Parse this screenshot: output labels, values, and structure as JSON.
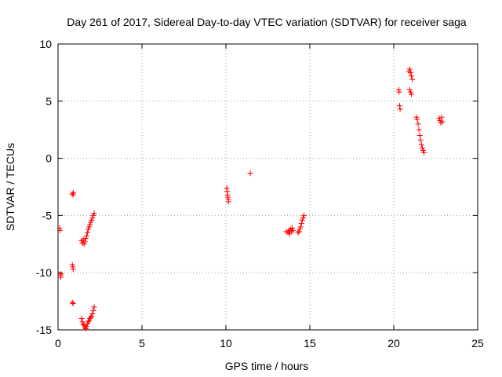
{
  "chart_data": {
    "type": "scatter",
    "title": "Day 261 of 2017, Sidereal Day-to-day VTEC variation (SDTVAR) for receiver saga",
    "xlabel": "GPS time / hours",
    "ylabel": "SDTVAR / TECUs",
    "xlim": [
      0,
      25
    ],
    "ylim": [
      -15,
      10
    ],
    "xticks": [
      0,
      5,
      10,
      15,
      20,
      25
    ],
    "yticks": [
      -15,
      -10,
      -5,
      0,
      5,
      10
    ],
    "xtick_labels": [
      "0",
      "5",
      "10",
      "15",
      "20",
      "25"
    ],
    "ytick_labels": [
      "-15",
      "-10",
      "-5",
      "0",
      "5",
      "10"
    ],
    "grid": true,
    "marker": "plus",
    "series": [
      {
        "name": "SDTVAR",
        "color": "#ff0000",
        "points": [
          [
            0.1,
            -6.1
          ],
          [
            0.12,
            -6.3
          ],
          [
            0.15,
            -10.1
          ],
          [
            0.16,
            -10.4
          ],
          [
            0.18,
            -10.2
          ],
          [
            0.85,
            -3.1
          ],
          [
            0.9,
            -3.2
          ],
          [
            0.92,
            -3.0
          ],
          [
            0.85,
            -9.3
          ],
          [
            0.88,
            -9.5
          ],
          [
            0.9,
            -9.7
          ],
          [
            0.85,
            -12.6
          ],
          [
            0.9,
            -12.7
          ],
          [
            1.4,
            -7.2
          ],
          [
            1.45,
            -7.4
          ],
          [
            1.5,
            -7.1
          ],
          [
            1.55,
            -7.5
          ],
          [
            1.6,
            -7.3
          ],
          [
            1.65,
            -7.0
          ],
          [
            1.7,
            -6.8
          ],
          [
            1.75,
            -6.5
          ],
          [
            1.8,
            -6.2
          ],
          [
            1.85,
            -6.0
          ],
          [
            1.9,
            -5.8
          ],
          [
            1.95,
            -5.6
          ],
          [
            2.0,
            -5.4
          ],
          [
            2.05,
            -5.2
          ],
          [
            2.1,
            -5.0
          ],
          [
            2.15,
            -4.8
          ],
          [
            1.4,
            -14.0
          ],
          [
            1.45,
            -14.3
          ],
          [
            1.5,
            -14.5
          ],
          [
            1.55,
            -14.6
          ],
          [
            1.6,
            -14.8
          ],
          [
            1.65,
            -14.9
          ],
          [
            1.7,
            -14.7
          ],
          [
            1.75,
            -14.5
          ],
          [
            1.8,
            -14.3
          ],
          [
            1.85,
            -14.2
          ],
          [
            1.9,
            -14.0
          ],
          [
            1.95,
            -13.9
          ],
          [
            2.0,
            -13.8
          ],
          [
            2.05,
            -13.6
          ],
          [
            2.1,
            -13.3
          ],
          [
            2.15,
            -13.0
          ],
          [
            10.05,
            -2.6
          ],
          [
            10.08,
            -2.9
          ],
          [
            10.1,
            -3.2
          ],
          [
            10.12,
            -3.4
          ],
          [
            10.15,
            -3.6
          ],
          [
            10.15,
            -3.8
          ],
          [
            11.45,
            -1.3
          ],
          [
            13.6,
            -6.4
          ],
          [
            13.7,
            -6.5
          ],
          [
            13.75,
            -6.3
          ],
          [
            13.8,
            -6.6
          ],
          [
            13.85,
            -6.2
          ],
          [
            13.9,
            -6.4
          ],
          [
            13.95,
            -6.1
          ],
          [
            14.0,
            -6.3
          ],
          [
            14.3,
            -6.5
          ],
          [
            14.35,
            -6.4
          ],
          [
            14.4,
            -6.2
          ],
          [
            14.45,
            -6.0
          ],
          [
            14.5,
            -5.7
          ],
          [
            14.55,
            -5.4
          ],
          [
            14.6,
            -5.2
          ],
          [
            14.65,
            -5.0
          ],
          [
            20.3,
            6.0
          ],
          [
            20.32,
            5.8
          ],
          [
            20.35,
            4.6
          ],
          [
            20.38,
            4.3
          ],
          [
            20.9,
            7.6
          ],
          [
            20.95,
            7.8
          ],
          [
            21.0,
            7.5
          ],
          [
            21.05,
            7.2
          ],
          [
            21.1,
            6.9
          ],
          [
            20.95,
            6.0
          ],
          [
            21.0,
            5.8
          ],
          [
            21.05,
            5.6
          ],
          [
            21.35,
            3.6
          ],
          [
            21.4,
            3.4
          ],
          [
            21.45,
            3.0
          ],
          [
            21.5,
            2.5
          ],
          [
            21.55,
            2.0
          ],
          [
            21.6,
            1.6
          ],
          [
            21.65,
            1.2
          ],
          [
            21.7,
            0.9
          ],
          [
            21.75,
            0.7
          ],
          [
            21.8,
            0.5
          ],
          [
            22.7,
            3.5
          ],
          [
            22.75,
            3.3
          ],
          [
            22.8,
            3.1
          ],
          [
            22.85,
            3.6
          ],
          [
            22.9,
            3.2
          ]
        ]
      }
    ]
  }
}
